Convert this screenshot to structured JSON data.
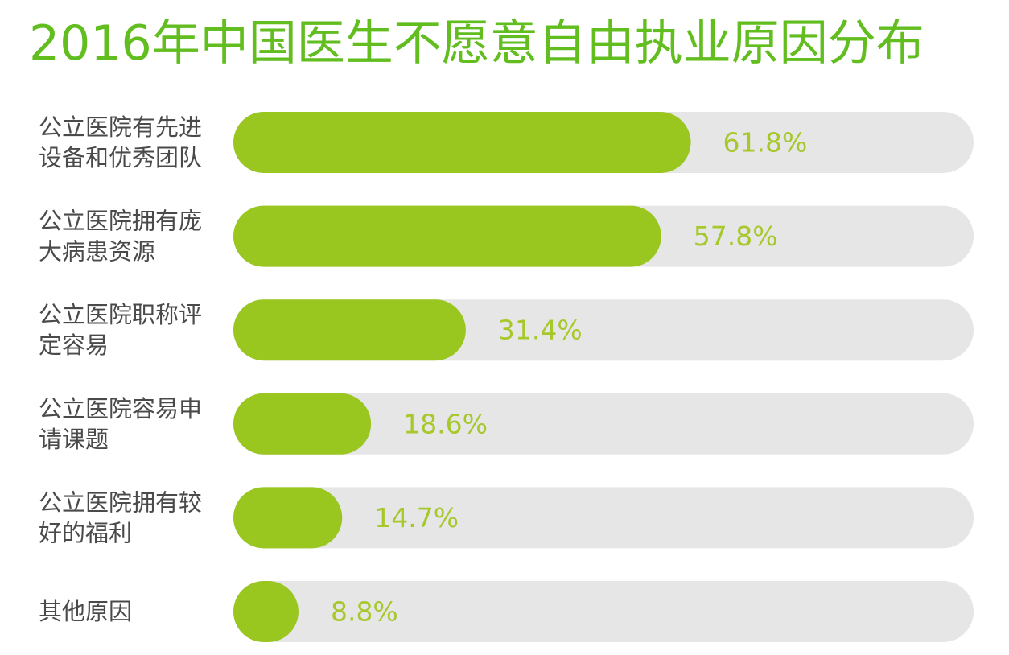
{
  "chart_data": {
    "type": "bar",
    "orientation": "horizontal",
    "title": "2016年中国医生不愿意自由执业原因分布",
    "categories": [
      [
        "公立医院有先进",
        "设备和优秀团队"
      ],
      [
        "公立医院拥有庞",
        "大病患资源"
      ],
      [
        "公立医院职称评",
        "定容易"
      ],
      [
        "公立医院容易申",
        "请课题"
      ],
      [
        "公立医院拥有较",
        "好的福利"
      ],
      [
        "其他原因"
      ]
    ],
    "values": [
      61.8,
      57.8,
      31.4,
      18.6,
      14.7,
      8.8
    ],
    "value_labels": [
      "61.8%",
      "57.8%",
      "31.4%",
      "18.6%",
      "14.7%",
      "8.8%"
    ],
    "unit": "%",
    "xlim": [
      0,
      100
    ],
    "grid": false,
    "colors": {
      "bar": "#99c61f",
      "track": "#e6e6e6",
      "title": "#62bd1f",
      "value_label": "#a6c82a",
      "category_label": "#4a4a4a"
    }
  }
}
